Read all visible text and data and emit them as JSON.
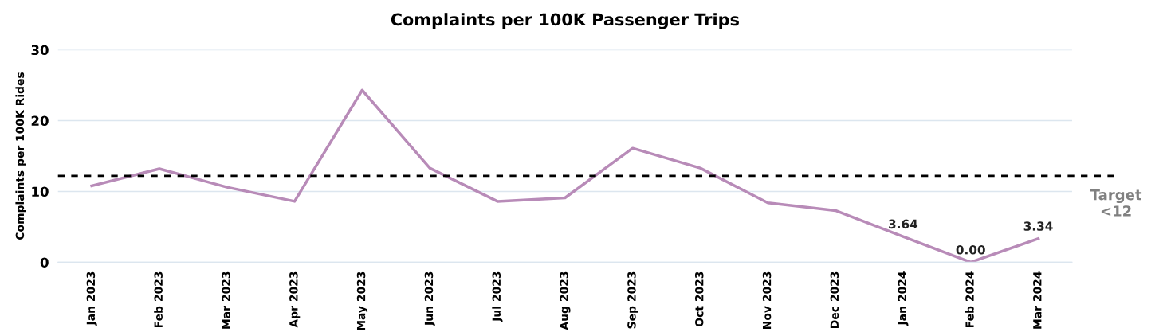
{
  "chart_data": {
    "type": "line",
    "title": "Complaints per 100K Passenger Trips",
    "ylabel": "Complaints per 100K Rides",
    "categories": [
      "Jan 2023",
      "Feb 2023",
      "Mar 2023",
      "Apr 2023",
      "May 2023",
      "Jun 2023",
      "Jul 2023",
      "Aug 2023",
      "Sep 2023",
      "Oct 2023",
      "Nov 2023",
      "Dec 2023",
      "Jan 2024",
      "Feb 2024",
      "Mar 2024"
    ],
    "series": [
      {
        "color": "#b88bb8",
        "values": [
          10.8,
          13.2,
          10.6,
          8.6,
          24.3,
          13.3,
          8.6,
          9.1,
          16.1,
          13.3,
          8.4,
          7.3,
          3.64,
          0.0,
          3.34
        ],
        "value_labels": [
          null,
          null,
          null,
          null,
          null,
          null,
          null,
          null,
          null,
          null,
          null,
          null,
          "3.64",
          "0.00",
          "3.34"
        ]
      }
    ],
    "ylim": [
      0,
      30
    ],
    "yticks": [
      0,
      10,
      20,
      30
    ],
    "grid": "y",
    "legend": false,
    "marker": "none",
    "line_style": "solid",
    "ref_lines": [
      {
        "axis": "y",
        "value": 12.2,
        "label": "Target\n<12",
        "color": "#000000",
        "line_style": "dashed"
      }
    ]
  }
}
